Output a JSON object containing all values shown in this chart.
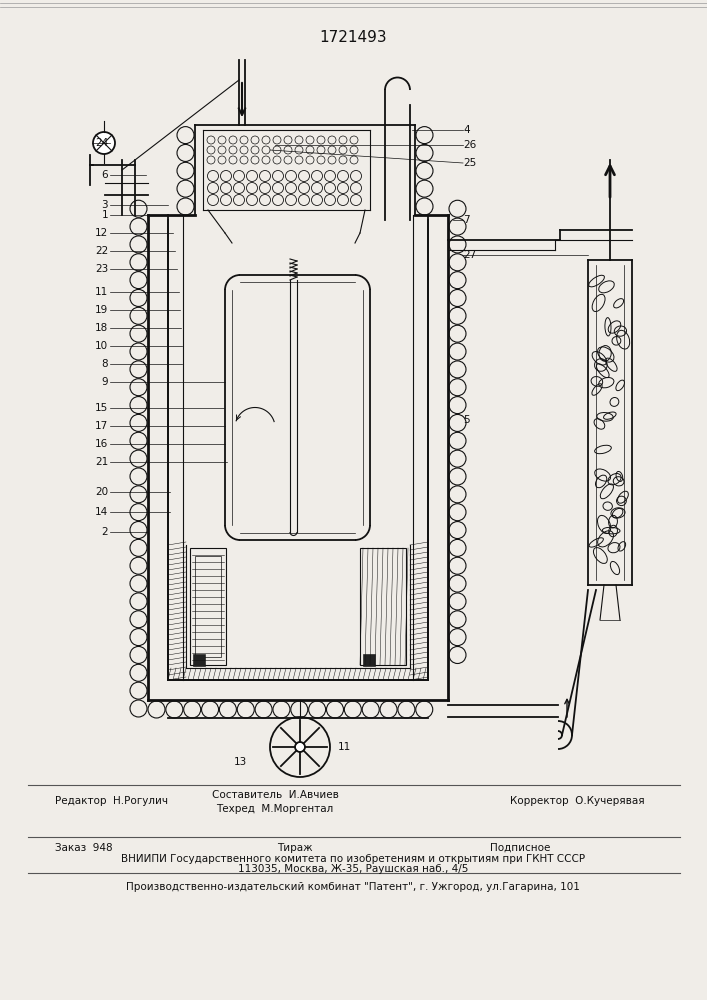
{
  "patent_number": "1721493",
  "bg_color": "#f0ede8",
  "lc": "#111111",
  "footer": {
    "editor": "Редактор  Н.Рогулич",
    "comp1": "Составитель  И.Авчиев",
    "comp2": "Техред  М.Моргентал",
    "corrector": "Корректор  О.Кучерявая",
    "order": "Заказ  948",
    "tirazh": "Тираж",
    "podp": "Подписное",
    "vniip1": "ВНИИПИ Государственного комитета по изобретениям и открытиям при ГКНТ СССР",
    "vniip2": "113035, Москва, Ж-35, Раушская наб., 4/5",
    "prod": "Производственно-издательский комбинат \"Патент\", г. Ужгород, ул.Гагарина, 101"
  }
}
